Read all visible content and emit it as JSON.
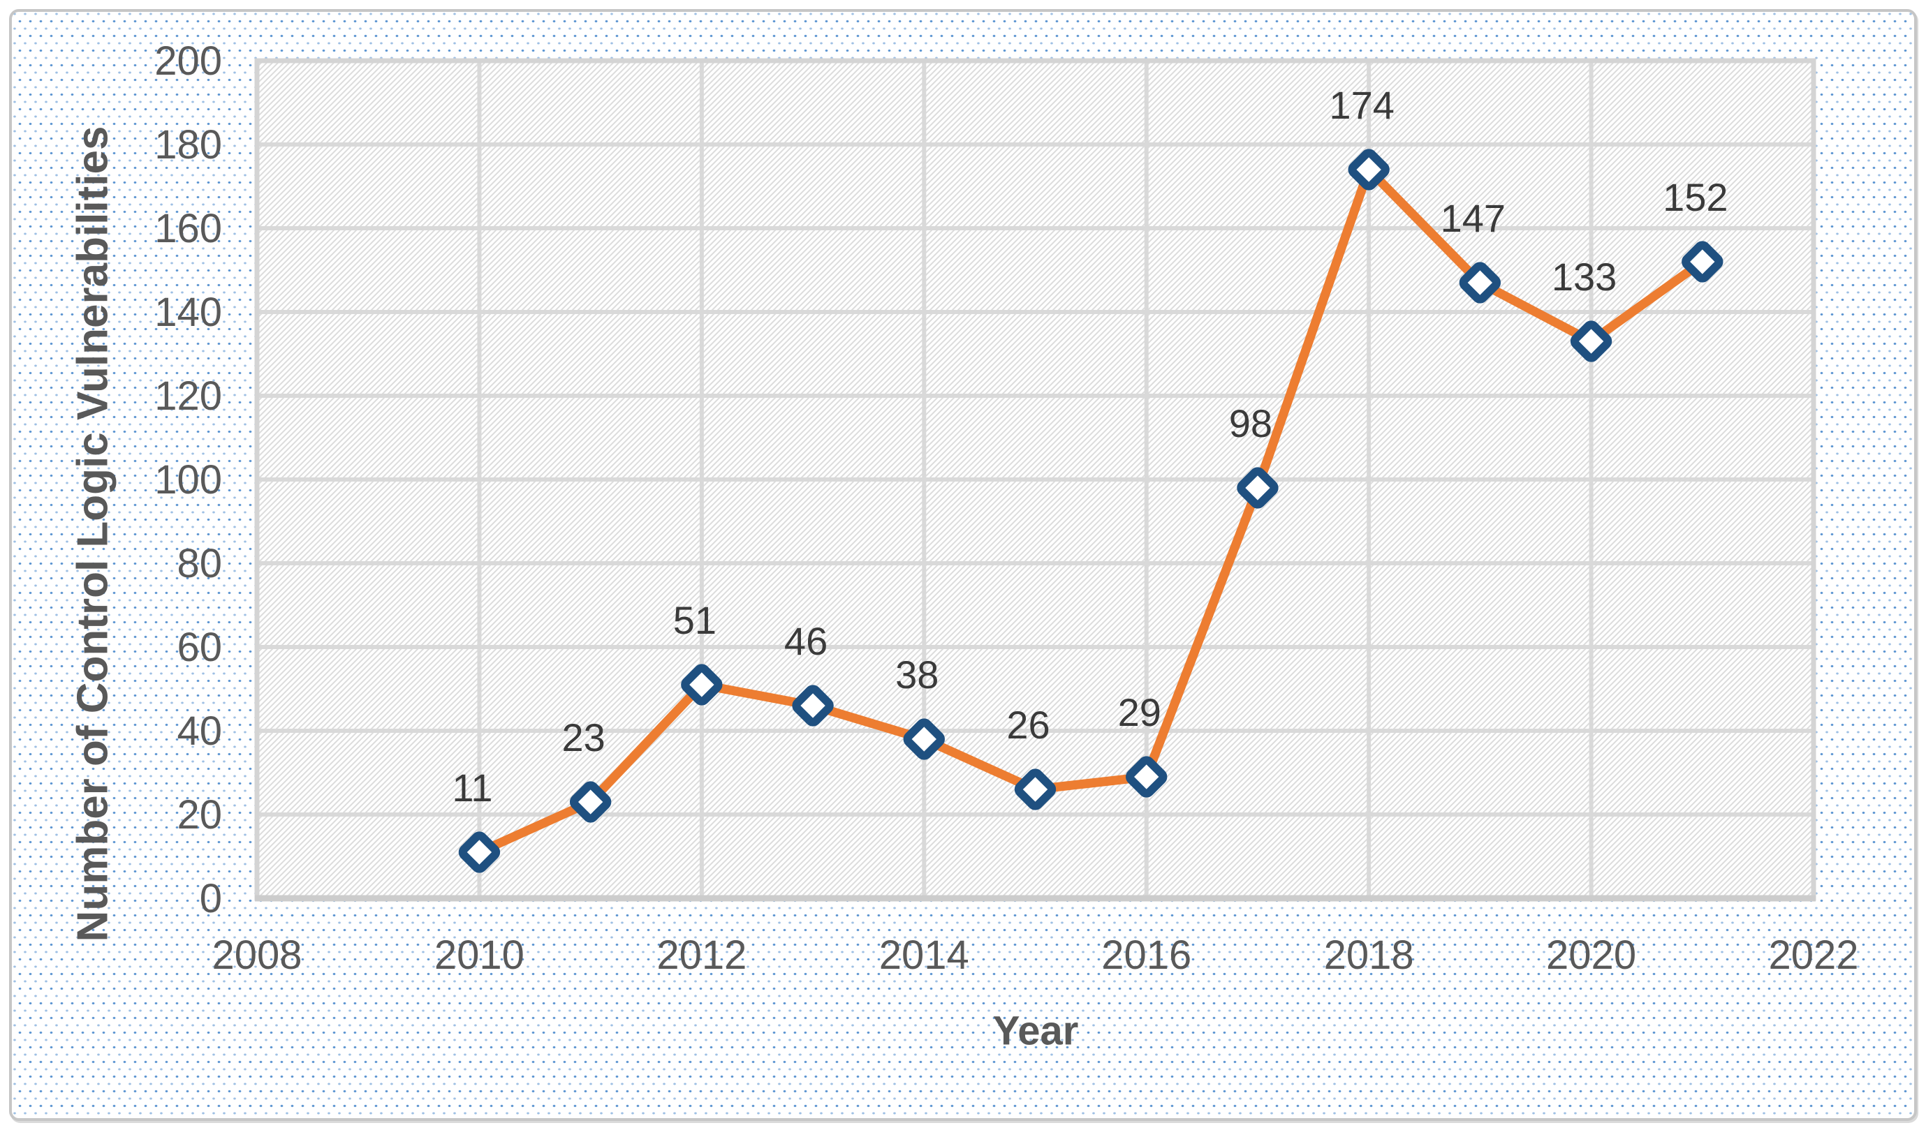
{
  "figure": {
    "background_dot_color": "#4d8bcd",
    "panel_border_color": "#c6c6c6",
    "plot_hatch_color": "#dcdcdc",
    "gridline_color": "#d9d9d9",
    "tick_label_color": "#595959",
    "data_label_color": "#3a3a3a"
  },
  "chart_data": {
    "type": "line",
    "title": "",
    "xlabel": "Year",
    "ylabel": "Number of Control Logic Vulnerabilities",
    "x": [
      2010,
      2011,
      2012,
      2013,
      2014,
      2015,
      2016,
      2017,
      2018,
      2019,
      2020,
      2021
    ],
    "values": [
      11,
      23,
      51,
      46,
      38,
      26,
      29,
      98,
      174,
      147,
      133,
      152
    ],
    "xlim": [
      2008,
      2022
    ],
    "ylim": [
      0,
      200
    ],
    "x_ticks": [
      2008,
      2010,
      2012,
      2014,
      2016,
      2018,
      2020,
      2022
    ],
    "y_ticks": [
      0,
      20,
      40,
      60,
      80,
      100,
      120,
      140,
      160,
      180,
      200
    ],
    "grid": true,
    "legend": "none",
    "line_color": "#ED7D31",
    "marker": "diamond",
    "marker_border_color": "#1F5080",
    "marker_fill_color": "#ffffff",
    "data_labels": true,
    "data_label_position": "above"
  }
}
